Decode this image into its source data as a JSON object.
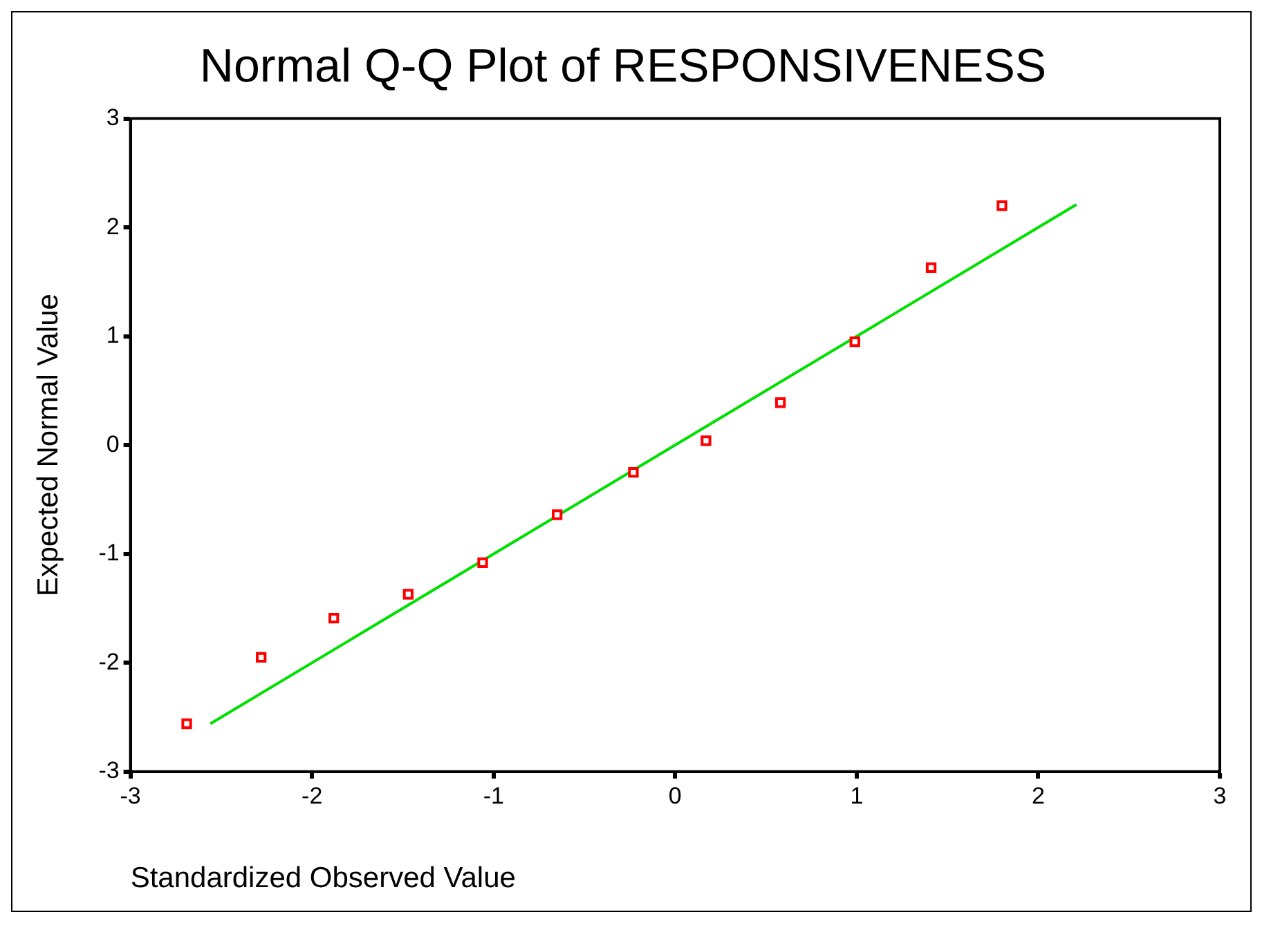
{
  "chart_data": {
    "type": "scatter",
    "title": "Normal Q-Q Plot of RESPONSIVENESS",
    "xlabel": "Standardized Observed Value",
    "ylabel": "Expected Normal Value",
    "xlim": [
      -3,
      3
    ],
    "xticks": [
      -3,
      -2,
      -1,
      0,
      1,
      2,
      3
    ],
    "ylim": [
      -3,
      3
    ],
    "yticks": [
      -3,
      -2,
      -1,
      0,
      1,
      2,
      3
    ],
    "grid": false,
    "legend": false,
    "marker": "square",
    "x": [
      -2.69,
      -2.28,
      -1.88,
      -1.47,
      -1.06,
      -0.65,
      -0.23,
      0.17,
      0.58,
      0.99,
      1.41,
      1.8
    ],
    "series": [
      {
        "color": "#ff0000",
        "values": [
          -2.56,
          -1.95,
          -1.59,
          -1.37,
          -1.08,
          -0.64,
          -0.25,
          0.04,
          0.39,
          0.95,
          1.63,
          2.2
        ]
      },
      {
        "type": "line",
        "color": "#00e000",
        "marker": "none",
        "x": [
          -2.56,
          2.21
        ],
        "values": [
          -2.56,
          2.21
        ]
      }
    ]
  }
}
